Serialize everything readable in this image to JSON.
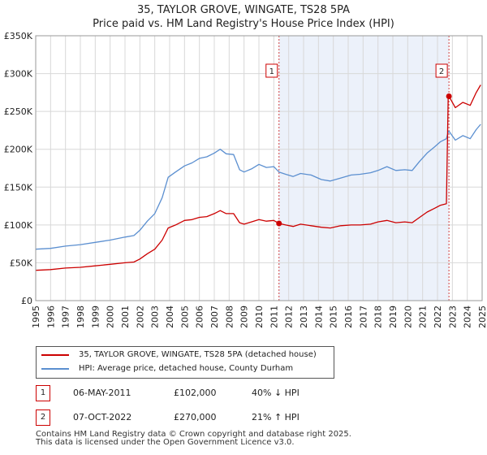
{
  "title_line1": "35, TAYLOR GROVE, WINGATE, TS28 5PA",
  "title_line2": "Price paid vs. HM Land Registry's House Price Index (HPI)",
  "chart_data": {
    "type": "line",
    "title": "35, TAYLOR GROVE, WINGATE, TS28 5PA",
    "subtitle": "Price paid vs. HM Land Registry's House Price Index (HPI)",
    "xlim": [
      1995,
      2025
    ],
    "ylim": [
      0,
      350000
    ],
    "y_ticks": [
      0,
      50000,
      100000,
      150000,
      200000,
      250000,
      300000,
      350000
    ],
    "y_tick_labels": [
      "£0",
      "£50K",
      "£100K",
      "£150K",
      "£200K",
      "£250K",
      "£300K",
      "£350K"
    ],
    "x_ticks": [
      1995,
      1996,
      1997,
      1998,
      1999,
      2000,
      2001,
      2002,
      2003,
      2004,
      2005,
      2006,
      2007,
      2008,
      2009,
      2010,
      2011,
      2012,
      2013,
      2014,
      2015,
      2016,
      2017,
      2018,
      2019,
      2020,
      2021,
      2022,
      2023,
      2024,
      2025
    ],
    "x_tick_labels": [
      "1995",
      "1996",
      "1997",
      "1998",
      "1999",
      "2000",
      "2001",
      "2002",
      "2003",
      "2004",
      "2005",
      "2006",
      "2007",
      "2008",
      "2009",
      "2010",
      "2011",
      "2012",
      "2013",
      "2014",
      "2015",
      "2016",
      "2017",
      "2018",
      "2019",
      "2020",
      "2021",
      "2022",
      "2023",
      "2024",
      "2025"
    ],
    "grid": true,
    "series": [
      {
        "name": "35, TAYLOR GROVE, WINGATE, TS28 5PA (detached house)",
        "color": "#cc0000",
        "x": [
          1995.0,
          1996.0,
          1997.0,
          1998.0,
          1999.0,
          2000.0,
          2001.0,
          2001.6,
          2002.0,
          2002.5,
          2003.0,
          2003.5,
          2003.9,
          2004.4,
          2005.0,
          2005.5,
          2006.0,
          2006.5,
          2007.0,
          2007.4,
          2007.8,
          2008.3,
          2008.7,
          2009.0,
          2009.5,
          2010.0,
          2010.5,
          2011.0,
          2011.35,
          2011.8,
          2012.3,
          2012.8,
          2013.5,
          2014.2,
          2014.8,
          2015.5,
          2016.2,
          2016.8,
          2017.5,
          2018.0,
          2018.6,
          2019.2,
          2019.8,
          2020.3,
          2020.8,
          2021.3,
          2021.8,
          2022.2,
          2022.6,
          2022.72,
          2022.77,
          2023.2,
          2023.7,
          2024.2,
          2024.6,
          2024.9
        ],
        "y": [
          40000,
          41000,
          43000,
          44000,
          46000,
          48000,
          50000,
          51000,
          55000,
          62000,
          68000,
          80000,
          96000,
          100000,
          106000,
          107000,
          110000,
          111000,
          115000,
          119000,
          115000,
          115000,
          103000,
          101000,
          104000,
          107000,
          105000,
          106000,
          102000,
          100000,
          98000,
          101000,
          99000,
          97000,
          96000,
          99000,
          100000,
          100000,
          101000,
          104000,
          106000,
          103000,
          104000,
          103000,
          110000,
          117000,
          122000,
          126000,
          128000,
          270000,
          270000,
          255000,
          262000,
          258000,
          275000,
          285000
        ]
      },
      {
        "name": "HPI: Average price, detached house, County Durham",
        "color": "#5b8fd0",
        "x": [
          1995.0,
          1996.0,
          1997.0,
          1998.0,
          1999.0,
          2000.0,
          2001.0,
          2001.6,
          2002.0,
          2002.5,
          2003.0,
          2003.5,
          2003.9,
          2004.4,
          2005.0,
          2005.5,
          2006.0,
          2006.5,
          2007.0,
          2007.4,
          2007.8,
          2008.3,
          2008.7,
          2009.0,
          2009.5,
          2010.0,
          2010.5,
          2011.0,
          2011.35,
          2011.8,
          2012.3,
          2012.8,
          2013.5,
          2014.2,
          2014.8,
          2015.5,
          2016.2,
          2016.8,
          2017.5,
          2018.0,
          2018.6,
          2019.2,
          2019.8,
          2020.3,
          2020.8,
          2021.3,
          2021.8,
          2022.2,
          2022.6,
          2022.72,
          2022.77,
          2023.2,
          2023.7,
          2024.2,
          2024.6,
          2024.9
        ],
        "y": [
          68000,
          69000,
          72000,
          74000,
          77000,
          80000,
          84000,
          86000,
          93000,
          105000,
          115000,
          136000,
          163000,
          170000,
          178000,
          182000,
          188000,
          190000,
          195000,
          200000,
          194000,
          193000,
          173000,
          170000,
          174000,
          180000,
          176000,
          177000,
          170000,
          167000,
          164000,
          168000,
          166000,
          160000,
          158000,
          162000,
          166000,
          167000,
          169000,
          172000,
          177000,
          172000,
          173000,
          172000,
          184000,
          195000,
          203000,
          210000,
          214000,
          223000,
          224000,
          212000,
          218000,
          214000,
          226000,
          233000
        ]
      }
    ],
    "transactions": [
      {
        "label": "1",
        "x": 2011.35,
        "y": 102000
      },
      {
        "label": "2",
        "x": 2022.77,
        "y": 270000
      }
    ],
    "shaded_ranges": [
      [
        2011.35,
        2022.77
      ]
    ]
  },
  "legend": {
    "red_label": "35, TAYLOR GROVE, WINGATE, TS28 5PA (detached house)",
    "blue_label": "HPI: Average price, detached house, County Durham"
  },
  "transactions_table": [
    {
      "num": "1",
      "date": "06-MAY-2011",
      "price": "£102,000",
      "hpi": "40% ↓ HPI"
    },
    {
      "num": "2",
      "date": "07-OCT-2022",
      "price": "£270,000",
      "hpi": "21% ↑ HPI"
    }
  ],
  "footer_line1": "Contains HM Land Registry data © Crown copyright and database right 2025.",
  "footer_line2": "This data is licensed under the Open Government Licence v3.0."
}
